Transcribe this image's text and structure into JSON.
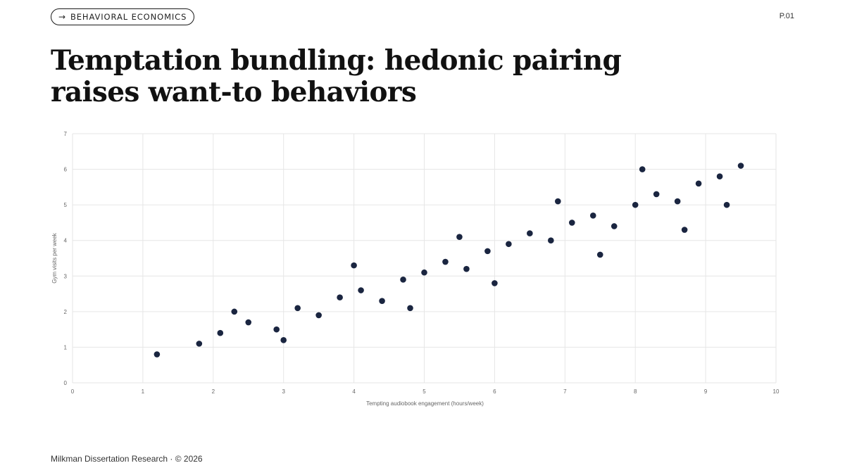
{
  "header": {
    "tag_label": "BEHAVIORAL ECONOMICS",
    "tag_icon": "arrow-right-icon",
    "page_number": "P.01"
  },
  "title": "Temptation bundling: hedonic pairing raises want-to behaviors",
  "footer": {
    "text": "Milkman Dissertation Research · © 2026"
  },
  "colors": {
    "point": "#1a2540",
    "grid": "#e6e6e6",
    "axis_text": "#666666"
  },
  "chart_data": {
    "type": "scatter",
    "xlabel": "Tempting audiobook engagement (hours/week)",
    "ylabel": "Gym visits per week",
    "xlim": [
      0,
      10
    ],
    "ylim": [
      0,
      7
    ],
    "x_ticks": [
      0,
      1,
      2,
      3,
      4,
      5,
      6,
      7,
      8,
      9,
      10
    ],
    "y_ticks": [
      0,
      1,
      2,
      3,
      4,
      5,
      6,
      7
    ],
    "grid": true,
    "legend": "none",
    "series": [
      {
        "points": [
          [
            1.2,
            0.8
          ],
          [
            1.8,
            1.1
          ],
          [
            2.1,
            1.4
          ],
          [
            2.3,
            2.0
          ],
          [
            2.5,
            1.7
          ],
          [
            2.9,
            1.5
          ],
          [
            3.0,
            1.2
          ],
          [
            3.2,
            2.1
          ],
          [
            3.5,
            1.9
          ],
          [
            3.8,
            2.4
          ],
          [
            4.0,
            3.3
          ],
          [
            4.1,
            2.6
          ],
          [
            4.4,
            2.3
          ],
          [
            4.7,
            2.9
          ],
          [
            4.8,
            2.1
          ],
          [
            5.0,
            3.1
          ],
          [
            5.3,
            3.4
          ],
          [
            5.5,
            4.1
          ],
          [
            5.6,
            3.2
          ],
          [
            5.9,
            3.7
          ],
          [
            6.0,
            2.8
          ],
          [
            6.2,
            3.9
          ],
          [
            6.5,
            4.2
          ],
          [
            6.8,
            4.0
          ],
          [
            6.9,
            5.1
          ],
          [
            7.1,
            4.5
          ],
          [
            7.4,
            4.7
          ],
          [
            7.5,
            3.6
          ],
          [
            7.7,
            4.4
          ],
          [
            8.0,
            5.0
          ],
          [
            8.1,
            6.0
          ],
          [
            8.3,
            5.3
          ],
          [
            8.6,
            5.1
          ],
          [
            8.7,
            4.3
          ],
          [
            8.9,
            5.6
          ],
          [
            9.2,
            5.8
          ],
          [
            9.3,
            5.0
          ],
          [
            9.5,
            6.1
          ]
        ]
      }
    ]
  }
}
